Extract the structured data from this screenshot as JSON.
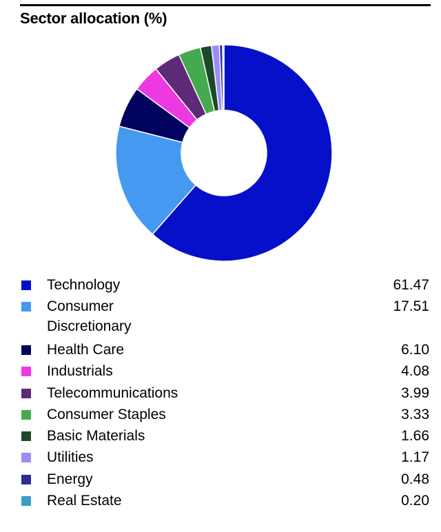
{
  "title": "Sector allocation (%)",
  "chart_data": {
    "type": "pie",
    "donut": true,
    "title": "Sector allocation (%)",
    "slices": [
      {
        "name": "Technology",
        "value": 61.47,
        "value_label": "61.47",
        "color": "#0510c8"
      },
      {
        "name": "Consumer Discretionary",
        "name_lines": [
          "Consumer",
          "Discretionary"
        ],
        "value": 17.51,
        "value_label": "17.51",
        "color": "#4599f0"
      },
      {
        "name": "Health Care",
        "value": 6.1,
        "value_label": "6.10",
        "color": "#02035e"
      },
      {
        "name": "Industrials",
        "value": 4.08,
        "value_label": "4.08",
        "color": "#ec39e2"
      },
      {
        "name": "Telecommunications",
        "value": 3.99,
        "value_label": "3.99",
        "color": "#5e2a78"
      },
      {
        "name": "Consumer Staples",
        "value": 3.33,
        "value_label": "3.33",
        "color": "#45aa4f"
      },
      {
        "name": "Basic Materials",
        "value": 1.66,
        "value_label": "1.66",
        "color": "#1b4a2a"
      },
      {
        "name": "Utilities",
        "value": 1.17,
        "value_label": "1.17",
        "color": "#a08cf8"
      },
      {
        "name": "Energy",
        "value": 0.48,
        "value_label": "0.48",
        "color": "#2b2d96"
      },
      {
        "name": "Real Estate",
        "value": 0.2,
        "value_label": "0.20",
        "color": "#3c9ec2"
      }
    ],
    "legend_position": "bottom"
  }
}
